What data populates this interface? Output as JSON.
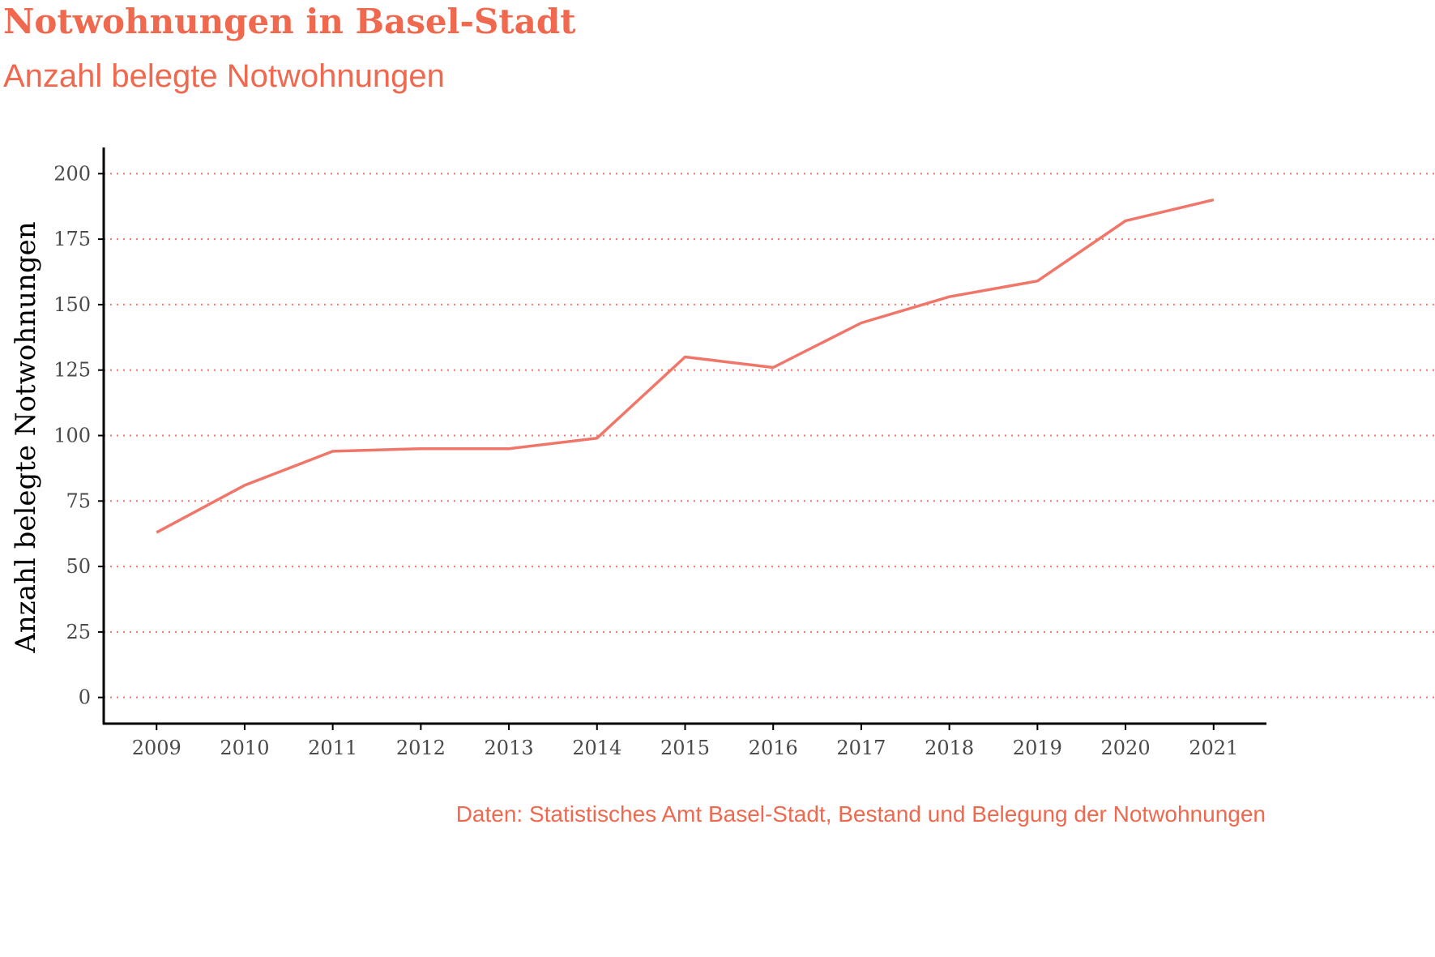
{
  "title": "Notwohnungen in Basel-Stadt",
  "subtitle": "Anzahl belegte Notwohnungen",
  "caption": "Daten: Statistisches Amt Basel-Stadt, Bestand und Belegung der Notwohnungen",
  "colors": {
    "accent": "#f0684e",
    "line": "#f0766a",
    "grid": "#f0766a",
    "axis": "#000000"
  },
  "chart_data": {
    "type": "line",
    "title": "Notwohnungen in Basel-Stadt",
    "subtitle": "Anzahl belegte Notwohnungen",
    "xlabel": "",
    "ylabel": "Anzahl belegte Notwohnungen",
    "x": [
      2009,
      2010,
      2011,
      2012,
      2013,
      2014,
      2015,
      2016,
      2017,
      2018,
      2019,
      2020,
      2021
    ],
    "x_tick_labels": [
      "2009",
      "2010",
      "2011",
      "2012",
      "2013",
      "2014",
      "2015",
      "2016",
      "2017",
      "2018",
      "2019",
      "2020",
      "2021"
    ],
    "series": [
      {
        "values": [
          63,
          81,
          94,
          95,
          95,
          99,
          130,
          126,
          143,
          153,
          159,
          182,
          190
        ]
      }
    ],
    "y_ticks": [
      0,
      25,
      50,
      75,
      100,
      125,
      150,
      175,
      200
    ],
    "y_tick_labels": [
      "0",
      "25",
      "50",
      "75",
      "100",
      "125",
      "150",
      "175",
      "200"
    ],
    "ylim": [
      -10,
      210
    ],
    "xlim": [
      2008.4,
      2021.6
    ],
    "grid": "horizontal dotted",
    "legend": "none"
  }
}
